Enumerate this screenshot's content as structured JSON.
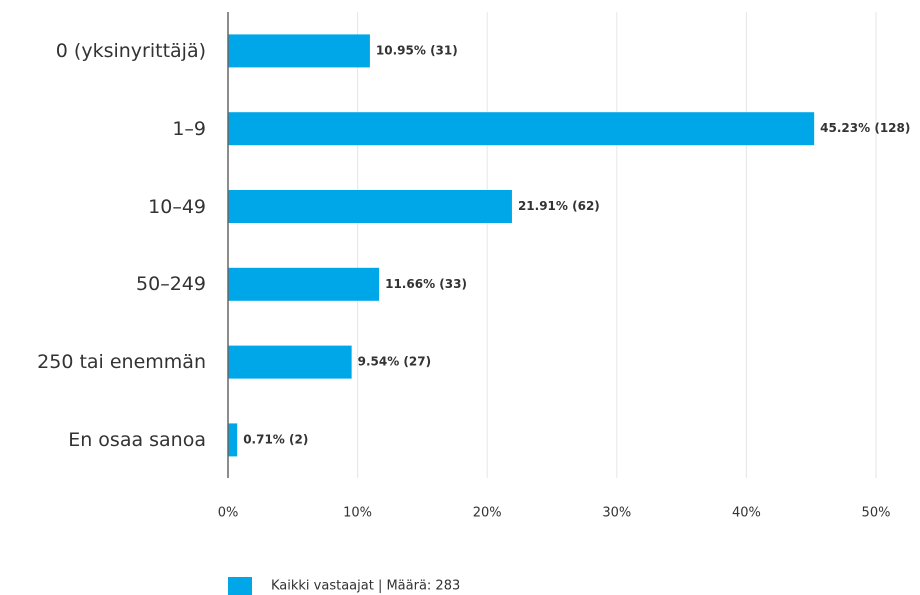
{
  "chart_data": {
    "type": "hbar",
    "categories": [
      "0 (yksinyrittäjä)",
      "1–9",
      "10–49",
      "50–249",
      "250 tai enemmän",
      "En osaa sanoa"
    ],
    "series": [
      {
        "name": "Kaikki vastaajat | Määrä: 283",
        "color": "#00a7e8",
        "values": [
          10.95,
          45.23,
          21.91,
          11.66,
          9.54,
          0.71
        ],
        "value_labels": [
          "10.95% (31)",
          "45.23% (128)",
          "21.91% (62)",
          "11.66% (33)",
          "9.54% (27)",
          "0.71% (2)"
        ]
      }
    ],
    "xlim": [
      0,
      50
    ],
    "xticks": [
      {
        "value": 0,
        "label": "0%"
      },
      {
        "value": 10,
        "label": "10%"
      },
      {
        "value": 20,
        "label": "20%"
      },
      {
        "value": 30,
        "label": "30%"
      },
      {
        "value": 40,
        "label": "40%"
      },
      {
        "value": 50,
        "label": "50%"
      }
    ],
    "grid": true
  }
}
